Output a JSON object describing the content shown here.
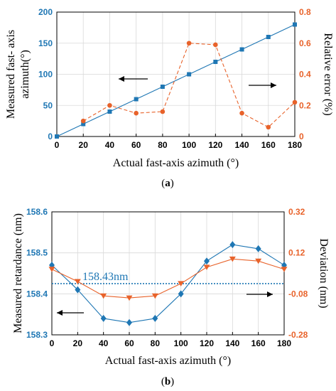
{
  "colors": {
    "blue": "#1f77b4",
    "orange": "#e8622a",
    "black": "#000000",
    "grid": "#d9d9d9"
  },
  "chart_data": [
    {
      "panel": "(a)",
      "panel_letter": "a",
      "type": "line",
      "xlabel": "Actual fast-axis azimuth (°)",
      "x_ticks": [
        0,
        20,
        40,
        60,
        80,
        100,
        120,
        140,
        160,
        180
      ],
      "xlim": [
        0,
        180
      ],
      "left_axis": {
        "label_lines": [
          "Measured fast- axis",
          "azimuth(°)"
        ],
        "ylim": [
          0,
          200
        ],
        "ticks": [
          0,
          50,
          100,
          150,
          200
        ],
        "color": "#1f77b4"
      },
      "right_axis": {
        "label": "Relative error (%)",
        "ylim": [
          0,
          0.8
        ],
        "ticks": [
          0,
          0.2,
          0.4,
          0.6,
          0.8
        ],
        "tick_labels": [
          "0",
          "0.2",
          "0.4",
          "0.6",
          "0.8"
        ],
        "color": "#e8622a"
      },
      "series": [
        {
          "axis": "left",
          "marker": "square",
          "style": "solid",
          "color": "#1f77b4",
          "x": [
            0,
            20,
            40,
            60,
            80,
            100,
            120,
            140,
            160,
            180
          ],
          "y": [
            0,
            20,
            40,
            60,
            80,
            100,
            120,
            140,
            160,
            180
          ]
        },
        {
          "axis": "right",
          "marker": "circle",
          "style": "dashed",
          "color": "#e8622a",
          "x": [
            20,
            40,
            60,
            80,
            100,
            120,
            140,
            160,
            180
          ],
          "y": [
            0.1,
            0.2,
            0.15,
            0.16,
            0.6,
            0.59,
            0.15,
            0.06,
            0.22
          ]
        }
      ],
      "arrows": [
        {
          "direction": "left",
          "points_to": "left axis"
        },
        {
          "direction": "right",
          "points_to": "right axis"
        }
      ],
      "grid": true
    },
    {
      "panel": "(b)",
      "panel_letter": "b",
      "type": "line",
      "xlabel": "Actual fast-axis azimuth (°)",
      "x_ticks": [
        0,
        20,
        40,
        60,
        80,
        100,
        120,
        140,
        160,
        180
      ],
      "xlim": [
        0,
        180
      ],
      "left_axis": {
        "label_lines": [
          "Measured retardance (nm)"
        ],
        "ylim": [
          158.3,
          158.6
        ],
        "ticks": [
          158.3,
          158.4,
          158.5,
          158.6
        ],
        "tick_labels": [
          "158.3",
          "158.4",
          "158.5",
          "158.6"
        ],
        "color": "#1f77b4"
      },
      "right_axis": {
        "label": "Deviation (nm)",
        "ylim": [
          -0.28,
          0.32
        ],
        "ticks": [
          -0.28,
          -0.08,
          0.12,
          0.32
        ],
        "tick_labels": [
          "-0.28",
          "-0.08",
          "0.12",
          "0.32"
        ],
        "color": "#e8622a"
      },
      "series": [
        {
          "axis": "left",
          "marker": "diamond",
          "style": "solid",
          "color": "#1f77b4",
          "x": [
            0,
            20,
            40,
            60,
            80,
            100,
            120,
            140,
            160,
            180
          ],
          "y": [
            158.47,
            158.41,
            158.34,
            158.33,
            158.34,
            158.4,
            158.48,
            158.52,
            158.51,
            158.47
          ]
        },
        {
          "axis": "right",
          "marker": "triangle-down",
          "style": "solid",
          "color": "#e8622a",
          "x": [
            0,
            20,
            40,
            60,
            80,
            100,
            120,
            140,
            160,
            180
          ],
          "y": [
            0.04,
            -0.02,
            -0.09,
            -0.1,
            -0.09,
            -0.03,
            0.05,
            0.09,
            0.08,
            0.04
          ]
        }
      ],
      "reference_line": {
        "y": 158.425,
        "label": "158.43nm",
        "color": "#1f77b4",
        "style": "dotted"
      },
      "arrows": [
        {
          "direction": "left",
          "points_to": "left axis"
        },
        {
          "direction": "right",
          "points_to": "right axis"
        }
      ],
      "grid": true
    }
  ]
}
